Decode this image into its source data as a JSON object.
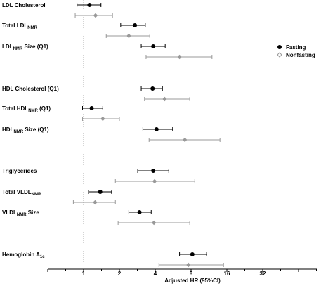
{
  "chart_data": {
    "type": "forest",
    "xlabel": "Adjusted HR (95%CI)",
    "xscale": "log2",
    "xlim": [
      0.25,
      64
    ],
    "xticks": [
      1,
      2,
      4,
      8,
      16,
      32
    ],
    "xtick_labels": [
      "1",
      "2",
      "4",
      "8",
      "16",
      "32"
    ],
    "reference_line": 1,
    "legend": {
      "placement": "right",
      "entries": [
        {
          "name": "Fasting",
          "color": "#000000",
          "marker": "circle"
        },
        {
          "name": "Nonfasting",
          "color": "#999999",
          "marker": "diamond"
        }
      ]
    },
    "rows": [
      {
        "label": "LDL Cholesterol",
        "label_sub": "",
        "label_suffix": "",
        "fasting": {
          "hr": 1.12,
          "lo": 0.88,
          "hi": 1.4
        },
        "nonfasting": {
          "hr": 1.26,
          "lo": 0.85,
          "hi": 1.75
        }
      },
      {
        "label": "Total LDL",
        "label_sub": "NMR",
        "label_suffix": "",
        "fasting": {
          "hr": 2.7,
          "lo": 2.05,
          "hi": 3.3
        },
        "nonfasting": {
          "hr": 2.4,
          "lo": 1.55,
          "hi": 3.6
        }
      },
      {
        "label": "LDL",
        "label_sub": "NMR",
        "label_suffix": " Size (Q1)",
        "fasting": {
          "hr": 3.85,
          "lo": 3.05,
          "hi": 4.85
        },
        "nonfasting": {
          "hr": 6.4,
          "lo": 3.35,
          "hi": 12.0
        }
      },
      {
        "label": "HDL Cholesterol (Q1)",
        "label_sub": "",
        "label_suffix": "",
        "fasting": {
          "hr": 3.8,
          "lo": 3.05,
          "hi": 4.6
        },
        "nonfasting": {
          "hr": 4.8,
          "lo": 3.25,
          "hi": 7.8
        }
      },
      {
        "label": "Total HDL",
        "label_sub": "NMR",
        "label_suffix": " (Q1)",
        "fasting": {
          "hr": 1.17,
          "lo": 0.98,
          "hi": 1.45
        },
        "nonfasting": {
          "hr": 1.45,
          "lo": 0.98,
          "hi": 2.0
        }
      },
      {
        "label": "HDL",
        "label_sub": "NMR",
        "label_suffix": " Size (Q1)",
        "fasting": {
          "hr": 4.1,
          "lo": 3.15,
          "hi": 5.6
        },
        "nonfasting": {
          "hr": 7.1,
          "lo": 3.55,
          "hi": 14.0
        }
      },
      {
        "label": "Triglycerides",
        "label_sub": "",
        "label_suffix": "",
        "fasting": {
          "hr": 3.85,
          "lo": 2.85,
          "hi": 5.2
        },
        "nonfasting": {
          "hr": 3.95,
          "lo": 1.85,
          "hi": 8.6
        }
      },
      {
        "label": "Total VLDL",
        "label_sub": "NMR",
        "label_suffix": "",
        "fasting": {
          "hr": 1.38,
          "lo": 1.1,
          "hi": 1.72
        },
        "nonfasting": {
          "hr": 1.25,
          "lo": 0.82,
          "hi": 1.85
        }
      },
      {
        "label": "VLDL",
        "label_sub": "NMR",
        "label_suffix": " Size",
        "fasting": {
          "hr": 2.95,
          "lo": 2.4,
          "hi": 3.7
        },
        "nonfasting": {
          "hr": 3.9,
          "lo": 1.95,
          "hi": 7.8
        }
      },
      {
        "label": "Hemoglobin A",
        "label_sub": "1c",
        "label_suffix": "",
        "fasting": {
          "hr": 8.2,
          "lo": 6.4,
          "hi": 10.8
        },
        "nonfasting": {
          "hr": 7.6,
          "lo": 4.3,
          "hi": 15.0
        }
      }
    ]
  }
}
